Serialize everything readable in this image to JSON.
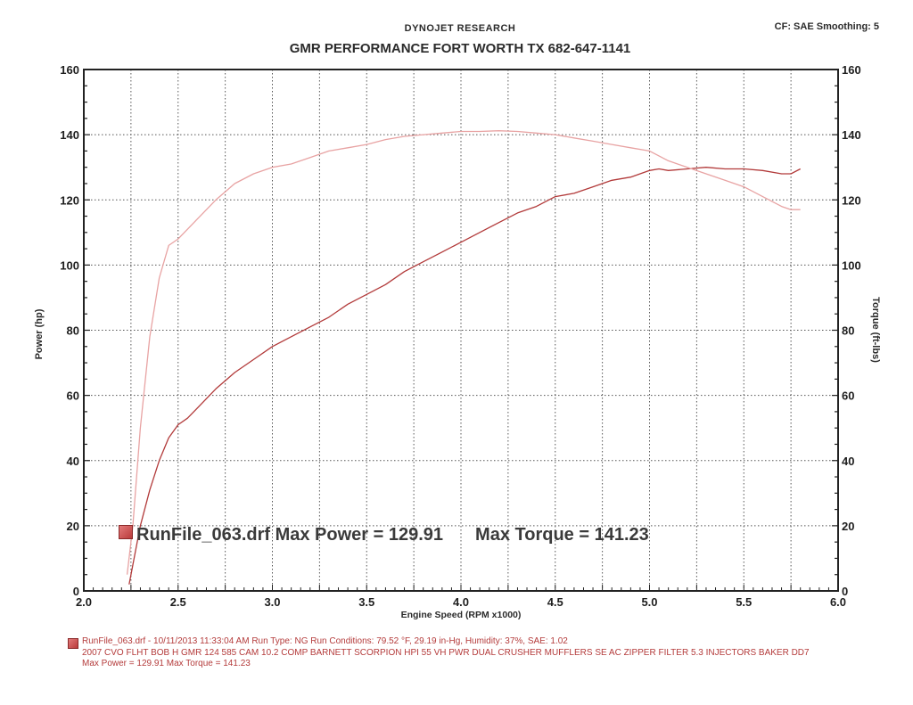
{
  "header": {
    "brand": "DYNOJET RESEARCH",
    "title": "GMR PERFORMANCE FORT WORTH TX 682-647-1141",
    "settings": "CF: SAE  Smoothing: 5"
  },
  "summary": {
    "run_label": "RunFile_063.drf Max Power = 129.91",
    "torque_label": "Max Torque = 141.23"
  },
  "footer": {
    "line1": "RunFile_063.drf - 10/11/2013 11:33:04 AM  Run Type: NG  Run Conditions: 79.52 °F, 29.19 in-Hg,  Humidity:  37%,  SAE: 1.02",
    "line2": "2007 CVO FLHT BOB H GMR 124 585 CAM 10.2 COMP BARNETT SCORPION HPI 55 VH PWR DUAL CRUSHER MUFFLERS SE AC ZIPPER FILTER 5.3 INJECTORS BAKER DD7",
    "line3": "Max Power = 129.91  Max Torque = 141.23"
  },
  "colors": {
    "power": "#b23a3a",
    "torque": "#e8a3a3",
    "grid": "#555555",
    "frame": "#222222"
  },
  "chart_data": {
    "type": "line",
    "title": "GMR PERFORMANCE FORT WORTH TX 682-647-1141",
    "xlabel": "Engine Speed (RPM x1000)",
    "ylabel": "Power (hp)",
    "y2label": "Torque (ft-lbs)",
    "xlim": [
      2.0,
      6.0
    ],
    "ylim": [
      0,
      160
    ],
    "y2lim": [
      0,
      160
    ],
    "x_ticks": [
      "2.0",
      "2.5",
      "3.0",
      "3.5",
      "4.0",
      "4.5",
      "5.0",
      "5.5",
      "6.0"
    ],
    "y_ticks": [
      "0",
      "20",
      "40",
      "60",
      "80",
      "100",
      "120",
      "140",
      "160"
    ],
    "grid": true,
    "series": [
      {
        "name": "Power",
        "axis": "left",
        "x": [
          2.24,
          2.26,
          2.3,
          2.35,
          2.4,
          2.45,
          2.5,
          2.55,
          2.6,
          2.7,
          2.8,
          2.9,
          3.0,
          3.1,
          3.2,
          3.3,
          3.4,
          3.5,
          3.6,
          3.7,
          3.8,
          3.9,
          4.0,
          4.1,
          4.2,
          4.3,
          4.4,
          4.5,
          4.6,
          4.7,
          4.8,
          4.9,
          5.0,
          5.05,
          5.1,
          5.2,
          5.3,
          5.4,
          5.5,
          5.6,
          5.7,
          5.75,
          5.8
        ],
        "y": [
          2,
          8,
          20,
          31,
          40,
          47,
          51,
          53,
          56,
          62,
          67,
          71,
          75,
          78,
          81,
          84,
          88,
          91,
          94,
          98,
          101,
          104,
          107,
          110,
          113,
          116,
          118,
          121,
          122,
          124,
          126,
          127,
          129,
          129.5,
          129,
          129.5,
          130,
          129.5,
          129.5,
          129,
          128,
          128,
          129.5
        ]
      },
      {
        "name": "Torque",
        "axis": "right",
        "x": [
          2.23,
          2.26,
          2.3,
          2.35,
          2.4,
          2.45,
          2.5,
          2.6,
          2.7,
          2.8,
          2.9,
          3.0,
          3.1,
          3.2,
          3.3,
          3.4,
          3.5,
          3.6,
          3.7,
          3.8,
          3.9,
          4.0,
          4.1,
          4.2,
          4.3,
          4.4,
          4.5,
          4.6,
          4.7,
          4.8,
          4.9,
          5.0,
          5.1,
          5.2,
          5.3,
          5.4,
          5.5,
          5.6,
          5.7,
          5.75,
          5.8
        ],
        "y": [
          5,
          20,
          50,
          78,
          96,
          106,
          108,
          114,
          120,
          125,
          128,
          130,
          131,
          133,
          135,
          136,
          137,
          138.5,
          139.5,
          140,
          140.5,
          141,
          141,
          141.2,
          141,
          140.5,
          140,
          139,
          138,
          137,
          136,
          135,
          132,
          130,
          128,
          126,
          124,
          121,
          118,
          117,
          117
        ]
      }
    ]
  }
}
